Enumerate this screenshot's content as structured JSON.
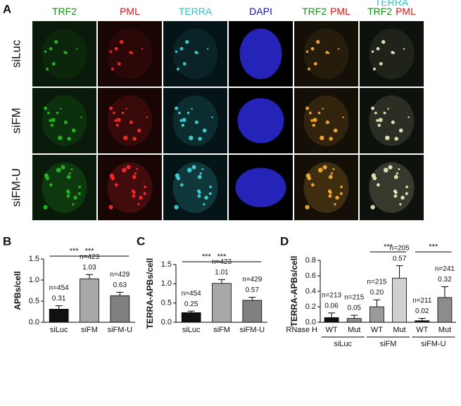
{
  "panel_a": {
    "panel_label": "A",
    "columns": [
      [
        [
          {
            "text": "TRF2",
            "color": "#1a8a1a"
          }
        ]
      ],
      [
        [
          {
            "text": "PML",
            "color": "#e01010"
          }
        ]
      ],
      [
        [
          {
            "text": "TERRA",
            "color": "#30c0c8"
          }
        ]
      ],
      [
        [
          {
            "text": "DAPI",
            "color": "#1010c0"
          }
        ]
      ],
      [
        [
          {
            "text": "TRF2",
            "color": "#1a8a1a"
          },
          {
            "text": "PML",
            "color": "#e01010"
          }
        ]
      ],
      [
        [
          {
            "text": "TERRA",
            "color": "#30c0c8"
          }
        ],
        [
          {
            "text": "TRF2",
            "color": "#1a8a1a"
          },
          {
            "text": "PML",
            "color": "#e01010"
          }
        ]
      ]
    ],
    "rows": [
      "siLuc",
      "siFM",
      "siFM-U"
    ]
  },
  "chart_data": [
    {
      "type": "bar",
      "panel_label": "B",
      "ylabel": "APBs/cell",
      "categories": [
        "siLuc",
        "siFM",
        "siFM-U"
      ],
      "values": [
        0.31,
        1.03,
        0.63
      ],
      "value_labels": [
        "0.31",
        "1.03",
        "0.63"
      ],
      "errors": [
        0.08,
        0.1,
        0.08
      ],
      "n_labels": [
        "n=454",
        "n=423",
        "n=429"
      ],
      "colors": [
        "#111111",
        "#a8a8a8",
        "#808080"
      ],
      "ylim": [
        0,
        1.5
      ],
      "yticks": [
        {
          "value": 0,
          "label": "0.0"
        },
        0.5,
        {
          "value": 1,
          "label": "1.0"
        },
        1.5
      ],
      "significance": [
        {
          "from": 0,
          "to": 1,
          "label": "***"
        },
        {
          "from": 0,
          "to": 2,
          "label": "***"
        }
      ]
    },
    {
      "type": "bar",
      "panel_label": "C",
      "ylabel": "TERRA-APBs/cell",
      "categories": [
        "siLuc",
        "siFM",
        "siFM-U"
      ],
      "values": [
        0.25,
        1.01,
        0.57
      ],
      "value_labels": [
        "0.25",
        "1.01",
        "0.57"
      ],
      "errors": [
        0.04,
        0.1,
        0.08
      ],
      "n_labels": [
        "n=454",
        "n=423",
        "n=429"
      ],
      "colors": [
        "#111111",
        "#a8a8a8",
        "#808080"
      ],
      "ylim": [
        0,
        1.5
      ],
      "yticks": [
        {
          "value": 0,
          "label": "0.0"
        },
        0.5,
        {
          "value": 1,
          "label": "1.0"
        },
        1.5
      ],
      "significance": [
        {
          "from": 0,
          "to": 1,
          "label": "***"
        },
        {
          "from": 0,
          "to": 2,
          "label": "***"
        }
      ]
    },
    {
      "type": "bar",
      "panel_label": "D",
      "ylabel": "TERRA-APBs/cell",
      "x_prefix_label": "RNase H",
      "categories": [
        "WT",
        "Mut",
        "WT",
        "Mut",
        "WT",
        "Mut"
      ],
      "groups": [
        {
          "name": "siLuc",
          "span": [
            0,
            1
          ]
        },
        {
          "name": "siFM",
          "span": [
            2,
            3
          ]
        },
        {
          "name": "siFM-U",
          "span": [
            4,
            5
          ]
        }
      ],
      "values": [
        0.06,
        0.05,
        0.2,
        0.57,
        0.02,
        0.32
      ],
      "value_labels": [
        "0.06",
        "0.05",
        "0.20",
        "0.57",
        "0.02",
        "0.32"
      ],
      "errors": [
        0.06,
        0.04,
        0.09,
        0.16,
        0.03,
        0.14
      ],
      "n_labels": [
        "n=213",
        "n=215",
        "n=215",
        "n=205",
        "n=211",
        "n=241"
      ],
      "colors": [
        "#111111",
        "#8c8c8c",
        "#9a9a9a",
        "#d0d0d0",
        "#222222",
        "#8c8c8c"
      ],
      "ylim": [
        0,
        0.8
      ],
      "yticks": [
        {
          "value": 0,
          "label": "0.0"
        },
        0.2,
        0.4,
        0.6,
        0.8
      ],
      "significance": [
        {
          "from": 2,
          "to": 3,
          "label": "***"
        },
        {
          "from": 4,
          "to": 5,
          "label": "***"
        }
      ]
    }
  ]
}
